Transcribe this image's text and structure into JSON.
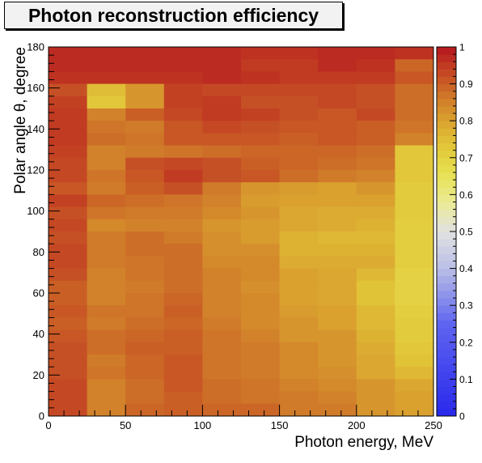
{
  "chart_data": {
    "type": "heatmap",
    "title": "Photon reconstruction efficiency",
    "xlabel": "Photon energy, MeV",
    "ylabel": "Polar angle θ, degree",
    "xlim": [
      0,
      250
    ],
    "ylim": [
      0,
      180
    ],
    "x_ticks": [
      "0",
      "50",
      "100",
      "150",
      "200",
      "250"
    ],
    "y_ticks": [
      "0",
      "20",
      "40",
      "60",
      "80",
      "100",
      "120",
      "140",
      "160",
      "180"
    ],
    "x_bin_width": 25,
    "y_bin_width": 6,
    "z_range": [
      0,
      1
    ],
    "z_ticks": [
      "0",
      "0.1",
      "0.2",
      "0.3",
      "0.4",
      "0.5",
      "0.6",
      "0.7",
      "0.8",
      "0.9",
      "1"
    ],
    "palette": "rainbow blue-white-yellow-red",
    "grid": false,
    "legend": "right colorbar",
    "values": [
      [
        0.97,
        0.97,
        0.97,
        0.97,
        0.97,
        0.96,
        0.96,
        0.97,
        0.97,
        0.96
      ],
      [
        0.97,
        0.97,
        0.97,
        0.97,
        0.97,
        0.95,
        0.95,
        0.97,
        0.96,
        0.89
      ],
      [
        0.96,
        0.96,
        0.96,
        0.96,
        0.97,
        0.96,
        0.95,
        0.95,
        0.95,
        0.91
      ],
      [
        0.92,
        0.75,
        0.82,
        0.94,
        0.93,
        0.93,
        0.93,
        0.93,
        0.92,
        0.88
      ],
      [
        0.94,
        0.73,
        0.82,
        0.94,
        0.95,
        0.92,
        0.92,
        0.93,
        0.92,
        0.88
      ],
      [
        0.95,
        0.85,
        0.9,
        0.93,
        0.95,
        0.94,
        0.92,
        0.91,
        0.93,
        0.88
      ],
      [
        0.95,
        0.87,
        0.86,
        0.91,
        0.93,
        0.92,
        0.91,
        0.91,
        0.9,
        0.87
      ],
      [
        0.95,
        0.88,
        0.87,
        0.91,
        0.91,
        0.91,
        0.9,
        0.91,
        0.9,
        0.85
      ],
      [
        0.94,
        0.85,
        0.86,
        0.87,
        0.88,
        0.89,
        0.89,
        0.89,
        0.88,
        0.73
      ],
      [
        0.93,
        0.85,
        0.92,
        0.93,
        0.92,
        0.9,
        0.89,
        0.88,
        0.87,
        0.73
      ],
      [
        0.93,
        0.87,
        0.91,
        0.95,
        0.92,
        0.91,
        0.88,
        0.86,
        0.85,
        0.73
      ],
      [
        0.91,
        0.86,
        0.9,
        0.92,
        0.86,
        0.82,
        0.81,
        0.8,
        0.82,
        0.72
      ],
      [
        0.94,
        0.89,
        0.88,
        0.87,
        0.85,
        0.81,
        0.8,
        0.8,
        0.8,
        0.72
      ],
      [
        0.92,
        0.87,
        0.86,
        0.86,
        0.84,
        0.82,
        0.79,
        0.78,
        0.78,
        0.72
      ],
      [
        0.93,
        0.84,
        0.85,
        0.85,
        0.82,
        0.81,
        0.79,
        0.78,
        0.77,
        0.71
      ],
      [
        0.92,
        0.86,
        0.88,
        0.86,
        0.83,
        0.81,
        0.77,
        0.76,
        0.76,
        0.71
      ],
      [
        0.93,
        0.86,
        0.88,
        0.88,
        0.83,
        0.83,
        0.77,
        0.77,
        0.77,
        0.71
      ],
      [
        0.93,
        0.86,
        0.87,
        0.88,
        0.84,
        0.84,
        0.78,
        0.78,
        0.78,
        0.71
      ],
      [
        0.92,
        0.85,
        0.87,
        0.88,
        0.85,
        0.84,
        0.8,
        0.79,
        0.76,
        0.7
      ],
      [
        0.9,
        0.85,
        0.86,
        0.88,
        0.85,
        0.83,
        0.8,
        0.79,
        0.74,
        0.7
      ],
      [
        0.9,
        0.85,
        0.87,
        0.89,
        0.85,
        0.84,
        0.8,
        0.79,
        0.74,
        0.7
      ],
      [
        0.91,
        0.87,
        0.87,
        0.9,
        0.85,
        0.84,
        0.81,
        0.8,
        0.76,
        0.71
      ],
      [
        0.9,
        0.86,
        0.88,
        0.89,
        0.86,
        0.84,
        0.82,
        0.8,
        0.76,
        0.72
      ],
      [
        0.91,
        0.88,
        0.89,
        0.9,
        0.87,
        0.85,
        0.82,
        0.82,
        0.77,
        0.72
      ],
      [
        0.92,
        0.88,
        0.9,
        0.9,
        0.87,
        0.86,
        0.84,
        0.82,
        0.78,
        0.73
      ],
      [
        0.92,
        0.86,
        0.89,
        0.91,
        0.87,
        0.86,
        0.84,
        0.82,
        0.79,
        0.74
      ],
      [
        0.92,
        0.87,
        0.89,
        0.91,
        0.87,
        0.86,
        0.84,
        0.83,
        0.79,
        0.76
      ],
      [
        0.93,
        0.85,
        0.88,
        0.91,
        0.88,
        0.87,
        0.85,
        0.84,
        0.82,
        0.79
      ],
      [
        0.93,
        0.85,
        0.88,
        0.9,
        0.88,
        0.87,
        0.86,
        0.85,
        0.82,
        0.8
      ],
      [
        0.93,
        0.85,
        0.89,
        0.9,
        0.89,
        0.89,
        0.86,
        0.86,
        0.82,
        0.8
      ]
    ]
  }
}
